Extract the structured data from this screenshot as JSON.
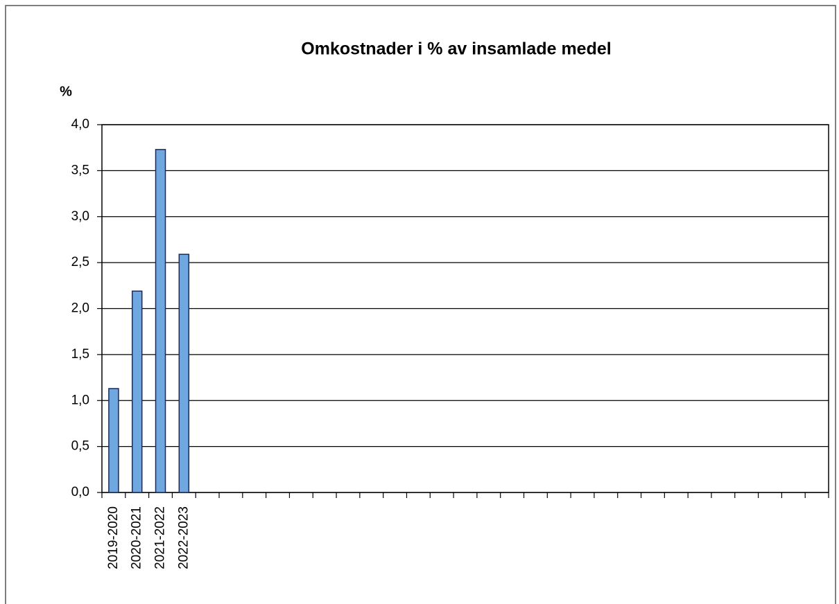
{
  "chart_data": {
    "type": "bar",
    "title": "Omkostnader i % av insamlade medel",
    "y_label": "%",
    "categories": [
      "2019-2020",
      "2020-2021",
      "2021-2022",
      "2022-2023",
      null,
      null,
      null,
      null,
      null,
      null,
      null,
      null,
      null,
      null,
      null,
      null,
      null,
      null,
      null,
      null,
      null,
      null,
      null,
      null,
      null,
      null,
      null,
      null,
      null,
      null,
      null
    ],
    "values": [
      1.13,
      2.19,
      3.73,
      2.59,
      null,
      null,
      null,
      null,
      null,
      null,
      null,
      null,
      null,
      null,
      null,
      null,
      null,
      null,
      null,
      null,
      null,
      null,
      null,
      null,
      null,
      null,
      null,
      null,
      null,
      null,
      null
    ],
    "color": "#6fa8e0",
    "ylim": [
      0,
      4
    ],
    "yticks": [
      {
        "value": 0,
        "label": "0,0"
      },
      {
        "value": 0.5,
        "label": "0,5"
      },
      {
        "value": 1,
        "label": "1,0"
      },
      {
        "value": 1.5,
        "label": "1,5"
      },
      {
        "value": 2,
        "label": "2,0"
      },
      {
        "value": 2.5,
        "label": "2,5"
      },
      {
        "value": 3,
        "label": "3,0"
      },
      {
        "value": 3.5,
        "label": "3,5"
      },
      {
        "value": 4,
        "label": "4,0"
      }
    ],
    "grid": true
  }
}
